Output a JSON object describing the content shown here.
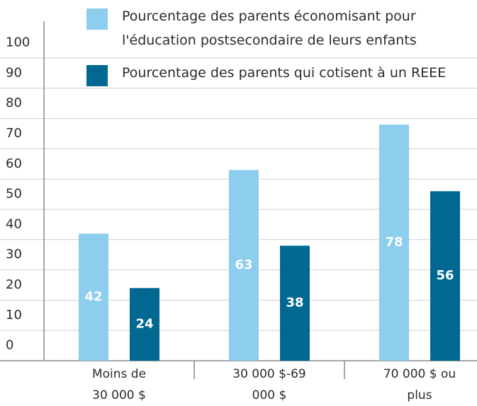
{
  "chart_data": {
    "type": "bar",
    "categories": [
      "Moins de 30 000 $",
      "30 000 $-69 000 $",
      "70 000 $ ou plus"
    ],
    "series": [
      {
        "name": "Pourcentage des parents économisant pour l'éducation postsecondaire de leurs enfants",
        "color": "#8dcdee",
        "values": [
          42,
          63,
          78
        ]
      },
      {
        "name": "Pourcentage des parents qui cotisent à un REEE",
        "color": "#006891",
        "values": [
          24,
          38,
          56
        ]
      }
    ],
    "ylim": [
      0,
      100
    ],
    "yticks": [
      0,
      10,
      20,
      30,
      40,
      50,
      60,
      70,
      80,
      90,
      100
    ],
    "grid": true
  }
}
